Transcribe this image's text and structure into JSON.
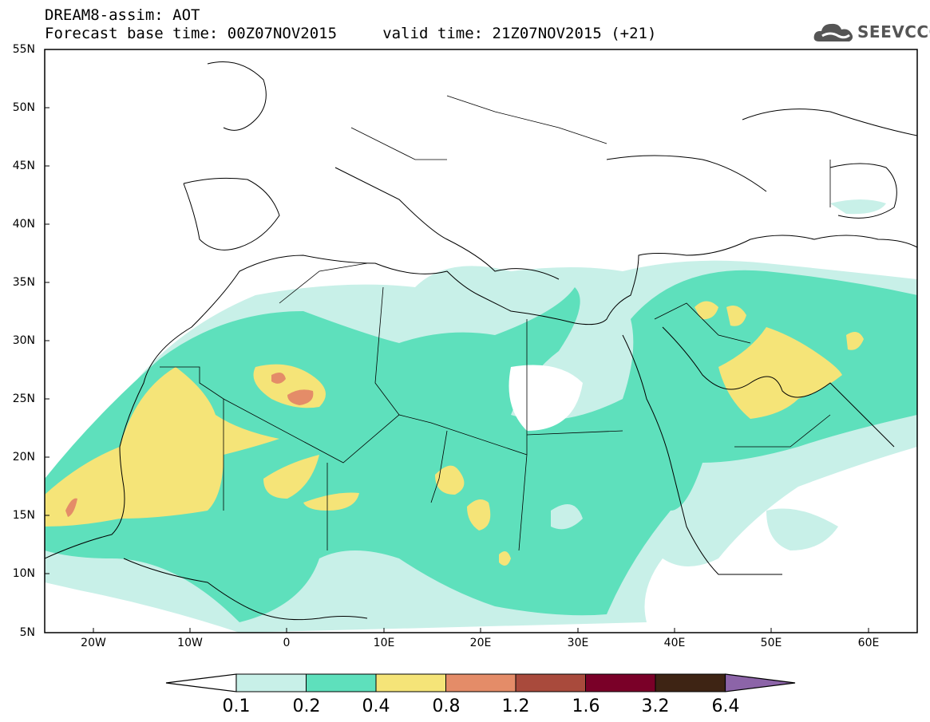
{
  "title": {
    "line1": "DREAM8-assim: AOT",
    "line2": "Forecast base time: 00Z07NOV2015     valid time: 21Z07NOV2015 (+21)"
  },
  "logo": {
    "text": "SEEVCCC",
    "icon": "cloud-logo-icon"
  },
  "map": {
    "variable": "AOT",
    "lat_labels": [
      "55N",
      "50N",
      "45N",
      "40N",
      "35N",
      "30N",
      "25N",
      "20N",
      "15N",
      "10N",
      "5N"
    ],
    "lon_labels": [
      "20W",
      "10W",
      "0",
      "10E",
      "20E",
      "30E",
      "40E",
      "50E",
      "60E"
    ],
    "lon_range": [
      -25,
      65
    ],
    "lat_range": [
      5,
      55
    ]
  },
  "colorbar": {
    "labels": [
      "0.1",
      "0.2",
      "0.4",
      "0.8",
      "1.2",
      "1.6",
      "3.2",
      "6.4"
    ],
    "colors": [
      "#ffffff",
      "#c8f0e8",
      "#5ee0bc",
      "#f5e478",
      "#e48c68",
      "#a94a3c",
      "#7a0028",
      "#3e2414",
      "#8c64a8"
    ]
  }
}
